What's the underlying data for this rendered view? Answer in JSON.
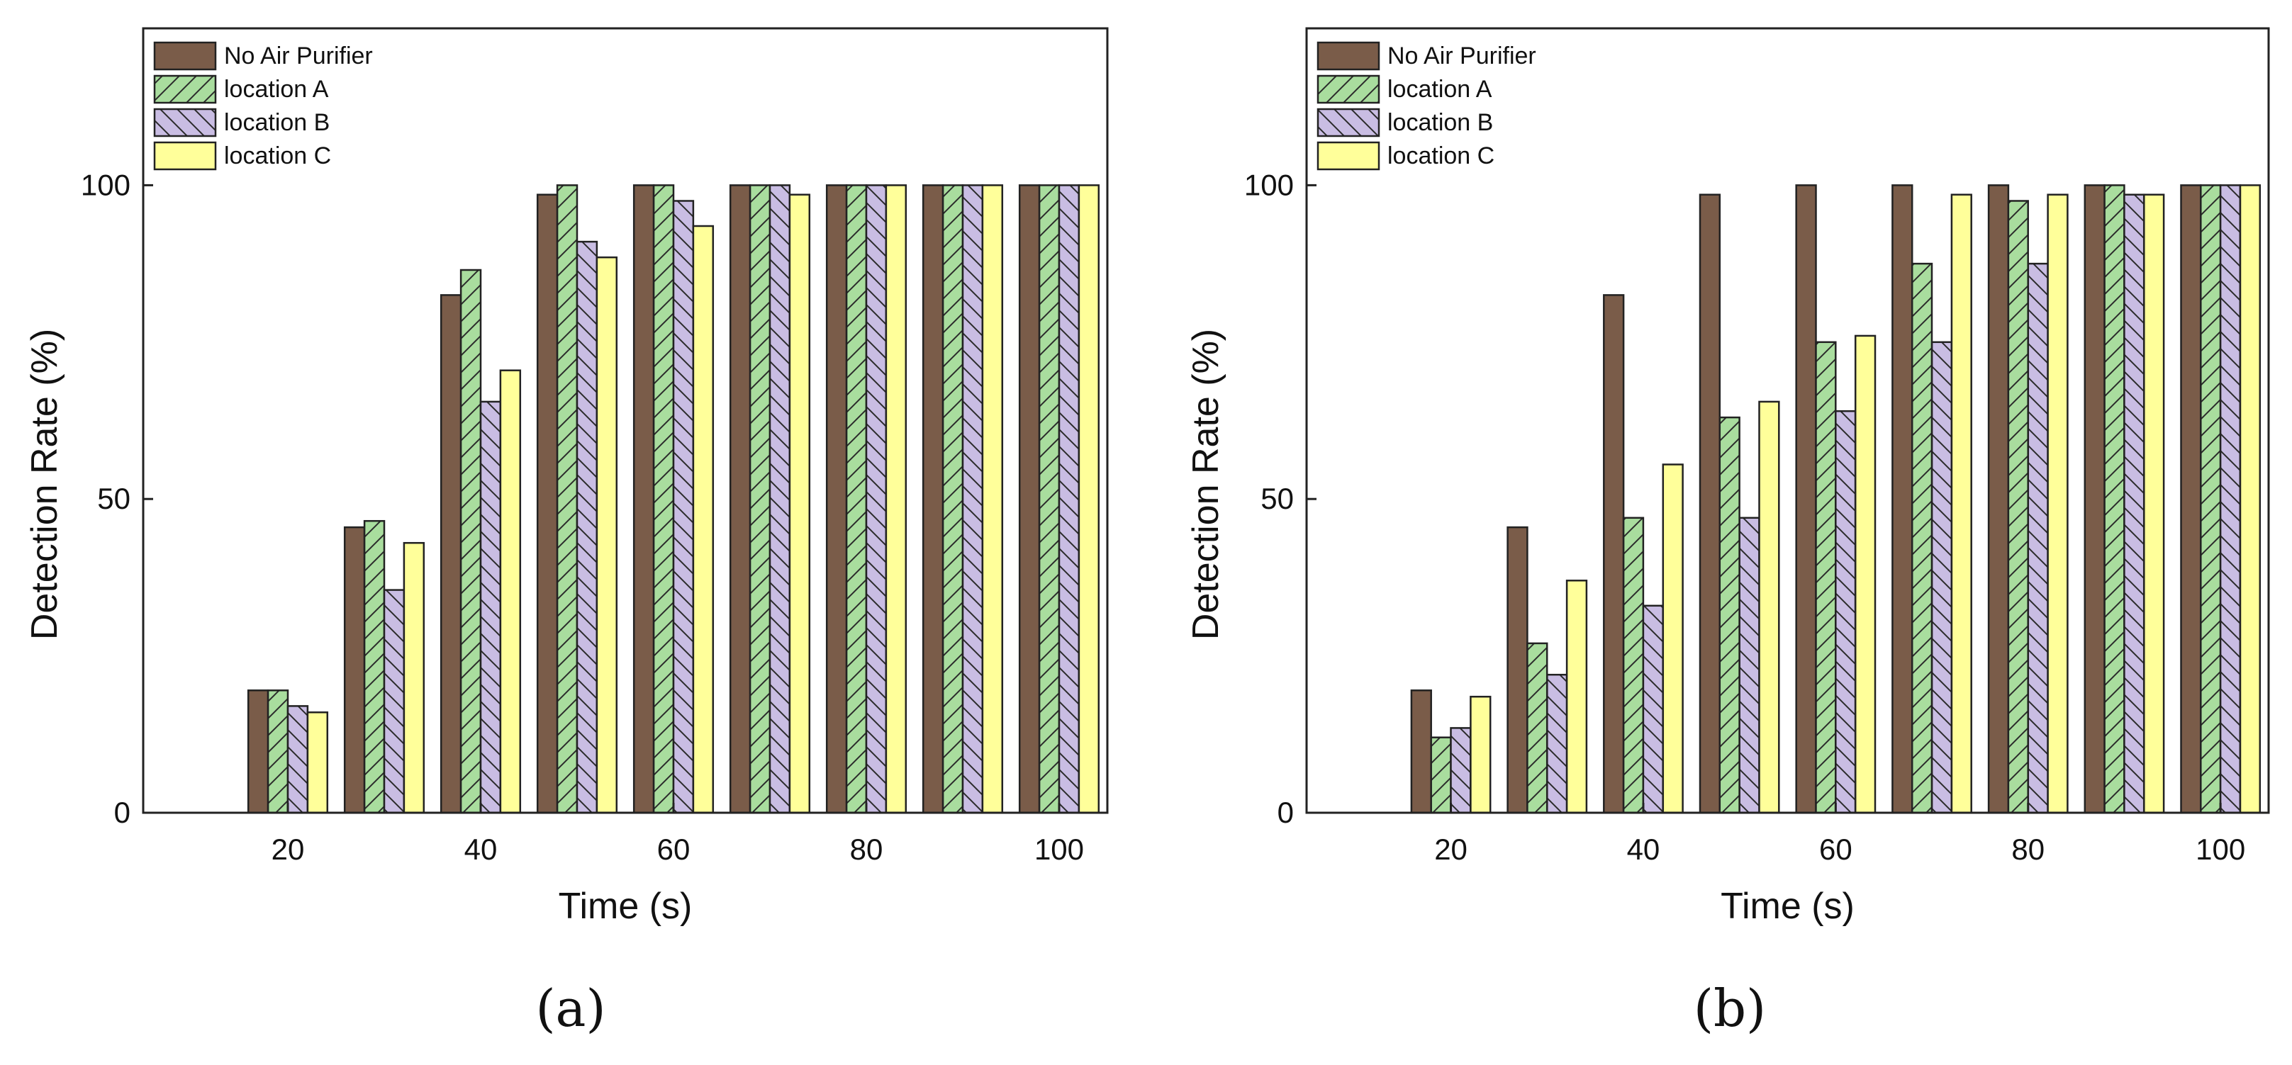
{
  "figure": {
    "panels": [
      "(a)",
      "(b)"
    ]
  },
  "colors": {
    "no_air_purifier": "#7a5c49",
    "location_a": "#a9dd9e",
    "location_b": "#c9bde3",
    "location_c": "#ffff9a",
    "stroke": "#222222"
  },
  "chart_data": [
    {
      "type": "bar",
      "panel_label": "(a)",
      "title": "",
      "xlabel": "Time (s)",
      "ylabel": "Detection Rate (%)",
      "ylim": [
        0,
        125
      ],
      "yticks": [
        0,
        50,
        100
      ],
      "x": [
        10,
        20,
        30,
        40,
        50,
        60,
        70,
        80,
        90,
        100
      ],
      "xtick_labels": [
        "20",
        "40",
        "60",
        "80",
        "100"
      ],
      "xtick_positions": [
        20,
        40,
        60,
        80,
        100
      ],
      "legend": [
        "No Air Purifier",
        "location A",
        "location B",
        "location C"
      ],
      "legend_position": "top-left",
      "series": [
        {
          "name": "No Air Purifier",
          "values": [
            0,
            19.5,
            45.5,
            82.5,
            98.5,
            100,
            100,
            100,
            100,
            100
          ]
        },
        {
          "name": "location A",
          "values": [
            0,
            19.5,
            46.5,
            86.5,
            100,
            100,
            100,
            100,
            100,
            100
          ]
        },
        {
          "name": "location B",
          "values": [
            0,
            17,
            35.5,
            65.5,
            91,
            97.5,
            100,
            100,
            100,
            100
          ]
        },
        {
          "name": "location C",
          "values": [
            0,
            16,
            43,
            70.5,
            88.5,
            93.5,
            98.5,
            100,
            100,
            100
          ]
        }
      ]
    },
    {
      "type": "bar",
      "panel_label": "(b)",
      "title": "",
      "xlabel": "Time (s)",
      "ylabel": "Detection Rate (%)",
      "ylim": [
        0,
        125
      ],
      "yticks": [
        0,
        50,
        100
      ],
      "x": [
        10,
        20,
        30,
        40,
        50,
        60,
        70,
        80,
        90,
        100
      ],
      "xtick_labels": [
        "20",
        "40",
        "60",
        "80",
        "100"
      ],
      "xtick_positions": [
        20,
        40,
        60,
        80,
        100
      ],
      "legend": [
        "No Air Purifier",
        "location A",
        "location B",
        "location C"
      ],
      "legend_position": "top-left",
      "series": [
        {
          "name": "No Air Purifier",
          "values": [
            0,
            19.5,
            45.5,
            82.5,
            98.5,
            100,
            100,
            100,
            100,
            100
          ]
        },
        {
          "name": "location A",
          "values": [
            0,
            12,
            27,
            47,
            63,
            75,
            87.5,
            97.5,
            100,
            100
          ]
        },
        {
          "name": "location B",
          "values": [
            0,
            13.5,
            22,
            33,
            47,
            64,
            75,
            87.5,
            98.5,
            100
          ]
        },
        {
          "name": "location C",
          "values": [
            0,
            18.5,
            37,
            55.5,
            65.5,
            76,
            98.5,
            98.5,
            98.5,
            100
          ]
        }
      ]
    }
  ]
}
